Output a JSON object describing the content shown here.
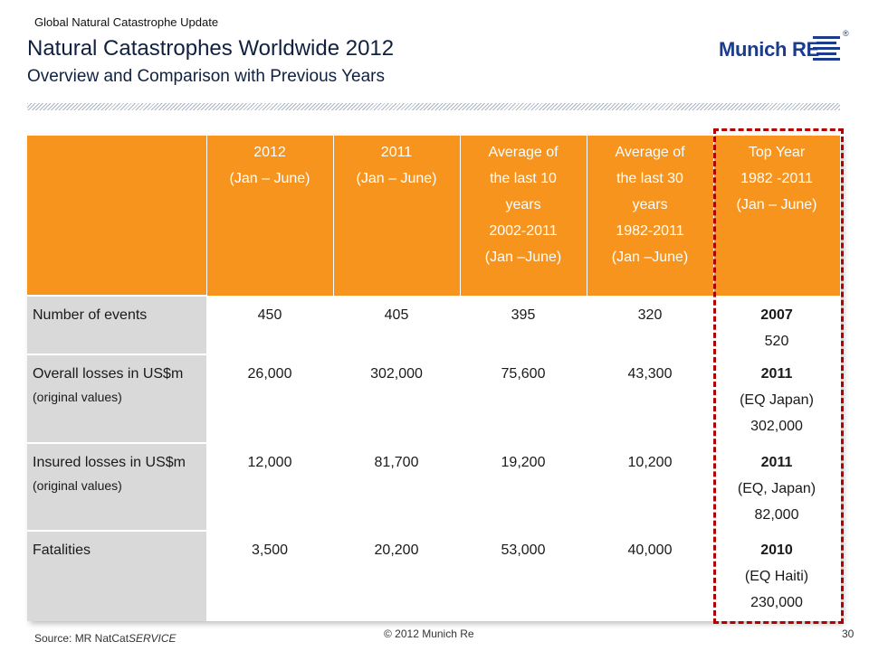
{
  "header": {
    "kicker": "Global Natural Catastrophe Update",
    "title": "Natural Catastrophes Worldwide 2012",
    "subtitle": "Overview and Comparison with Previous Years"
  },
  "logo": {
    "text": "Munich RE",
    "reg": "®"
  },
  "table": {
    "columns": [
      [
        "2012",
        "(Jan – June)"
      ],
      [
        "2011",
        "(Jan – June)"
      ],
      [
        "Average of",
        "the last 10",
        "years",
        "2002-2011",
        "(Jan –June)"
      ],
      [
        "Average of",
        "the last 30",
        "years",
        "1982-2011",
        "(Jan –June)"
      ],
      [
        "Top Year",
        "1982 -2011",
        "(Jan – June)"
      ]
    ],
    "rows": [
      {
        "label": "Number of events",
        "note": "",
        "values": [
          "450",
          "405",
          "395",
          "320"
        ],
        "top": [
          "2007",
          "520"
        ]
      },
      {
        "label": "Overall losses in US$m",
        "note": "(original values)",
        "values": [
          "26,000",
          "302,000",
          "75,600",
          "43,300"
        ],
        "top": [
          "2011",
          "(EQ Japan)",
          "302,000"
        ]
      },
      {
        "label": "Insured losses in US$m",
        "note": "(original values)",
        "values": [
          "12,000",
          "81,700",
          "19,200",
          "10,200"
        ],
        "top": [
          "2011",
          "(EQ, Japan)",
          "82,000"
        ]
      },
      {
        "label": "Fatalities",
        "note": "",
        "values": [
          "3,500",
          "20,200",
          "53,000",
          "40,000"
        ],
        "top": [
          "2010",
          "(EQ Haiti)",
          "230,000"
        ]
      }
    ]
  },
  "footer": {
    "source_prefix": "Source: MR NatCat",
    "source_italic": "SERVICE",
    "copyright": "© 2012 Munich Re",
    "page": "30"
  },
  "colors": {
    "header_bg": "#f7941d",
    "label_bg": "#d9d9d9",
    "highlight": "#b00000",
    "brand": "#1b3c8c"
  }
}
